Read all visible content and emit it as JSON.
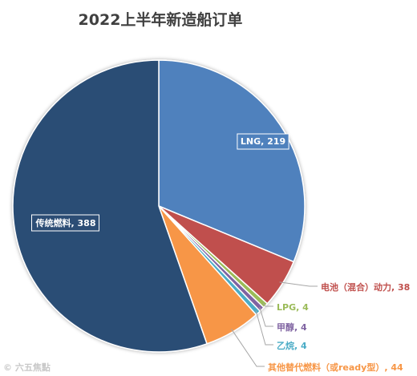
{
  "chart_data": {
    "type": "pie",
    "title": "2022上半年新造船订单",
    "start_angle_deg": 0,
    "direction": "clockwise",
    "slices": [
      {
        "label": "LNG",
        "value": 219,
        "color": "#4f81bd",
        "label_text": "LNG, 219",
        "label_color": "#ffffff",
        "label_style": "inside-box"
      },
      {
        "label": "电池（混合）动力",
        "value": 38,
        "color": "#c0504d",
        "label_text": "电池（混合）动力, 38",
        "label_color": "#c0504d",
        "label_style": "leader"
      },
      {
        "label": "LPG",
        "value": 4,
        "color": "#9bbb59",
        "label_text": "LPG, 4",
        "label_color": "#9bbb59",
        "label_style": "leader"
      },
      {
        "label": "甲醇",
        "value": 4,
        "color": "#8064a2",
        "label_text": "甲醇, 4",
        "label_color": "#8064a2",
        "label_style": "leader"
      },
      {
        "label": "乙烷",
        "value": 4,
        "color": "#4bacc6",
        "label_text": "乙烷, 4",
        "label_color": "#4bacc6",
        "label_style": "leader"
      },
      {
        "label": "其他替代燃料（或ready型）",
        "value": 44,
        "color": "#f79646",
        "label_text": "其他替代燃料（或ready型）, 44",
        "label_color": "#f79646",
        "label_style": "leader"
      },
      {
        "label": "传统燃料",
        "value": 388,
        "color": "#2c4d75",
        "label_text": "传统燃料, 388",
        "label_color": "#ffffff",
        "label_style": "inside-box"
      }
    ]
  },
  "watermark": "© 六五焦點"
}
